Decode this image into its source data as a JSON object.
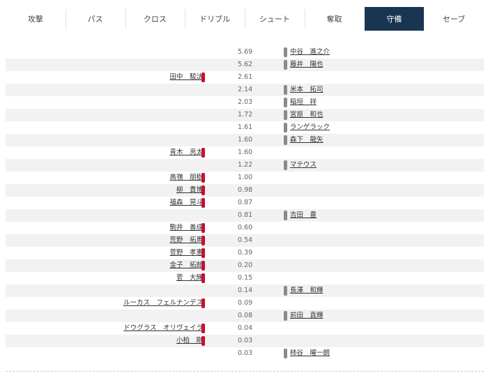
{
  "tabs": [
    {
      "label": "攻撃",
      "active": false
    },
    {
      "label": "パス",
      "active": false
    },
    {
      "label": "クロス",
      "active": false
    },
    {
      "label": "ドリブル",
      "active": false
    },
    {
      "label": "シュート",
      "active": false
    },
    {
      "label": "奪取",
      "active": false
    },
    {
      "label": "守備",
      "active": true
    },
    {
      "label": "セーブ",
      "active": false
    }
  ],
  "colors": {
    "active_tab": "#1a3552",
    "left_team": "#c8102e",
    "right_team": "#8a8a8a"
  },
  "rows": [
    {
      "value": "5.69",
      "side": "right",
      "name": "中谷　進之介"
    },
    {
      "value": "5.62",
      "side": "right",
      "name": "藤井　陽也"
    },
    {
      "value": "2.61",
      "side": "left",
      "name": "田中　駿汰"
    },
    {
      "value": "2.14",
      "side": "right",
      "name": "米本　拓司"
    },
    {
      "value": "2.03",
      "side": "right",
      "name": "稲垣　祥"
    },
    {
      "value": "1.72",
      "side": "right",
      "name": "宮原　和也"
    },
    {
      "value": "1.61",
      "side": "right",
      "name": "ランゲラック"
    },
    {
      "value": "1.60",
      "side": "right",
      "name": "森下　龍矢"
    },
    {
      "value": "1.60",
      "side": "left",
      "name": "青木　亮太"
    },
    {
      "value": "1.22",
      "side": "right",
      "name": "マテウス"
    },
    {
      "value": "1.00",
      "side": "left",
      "name": "高嶺　朋樹"
    },
    {
      "value": "0.98",
      "side": "left",
      "name": "柳　貴博"
    },
    {
      "value": "0.87",
      "side": "left",
      "name": "福森　晃斗"
    },
    {
      "value": "0.81",
      "side": "right",
      "name": "吉田　豊"
    },
    {
      "value": "0.60",
      "side": "left",
      "name": "駒井　善成"
    },
    {
      "value": "0.54",
      "side": "left",
      "name": "荒野　拓馬"
    },
    {
      "value": "0.39",
      "side": "left",
      "name": "菅野　孝憲"
    },
    {
      "value": "0.20",
      "side": "left",
      "name": "金子　拓郎"
    },
    {
      "value": "0.15",
      "side": "left",
      "name": "菅　大輝"
    },
    {
      "value": "0.14",
      "side": "right",
      "name": "長澤　和輝"
    },
    {
      "value": "0.09",
      "side": "left",
      "name": "ルーカス　フェルナンデス"
    },
    {
      "value": "0.08",
      "side": "right",
      "name": "前田　直輝"
    },
    {
      "value": "0.04",
      "side": "left",
      "name": "ドウグラス　オリヴェイラ"
    },
    {
      "value": "0.03",
      "side": "left",
      "name": "小柏　剛"
    },
    {
      "value": "0.03",
      "side": "right",
      "name": "柿谷　曜一朗"
    }
  ]
}
